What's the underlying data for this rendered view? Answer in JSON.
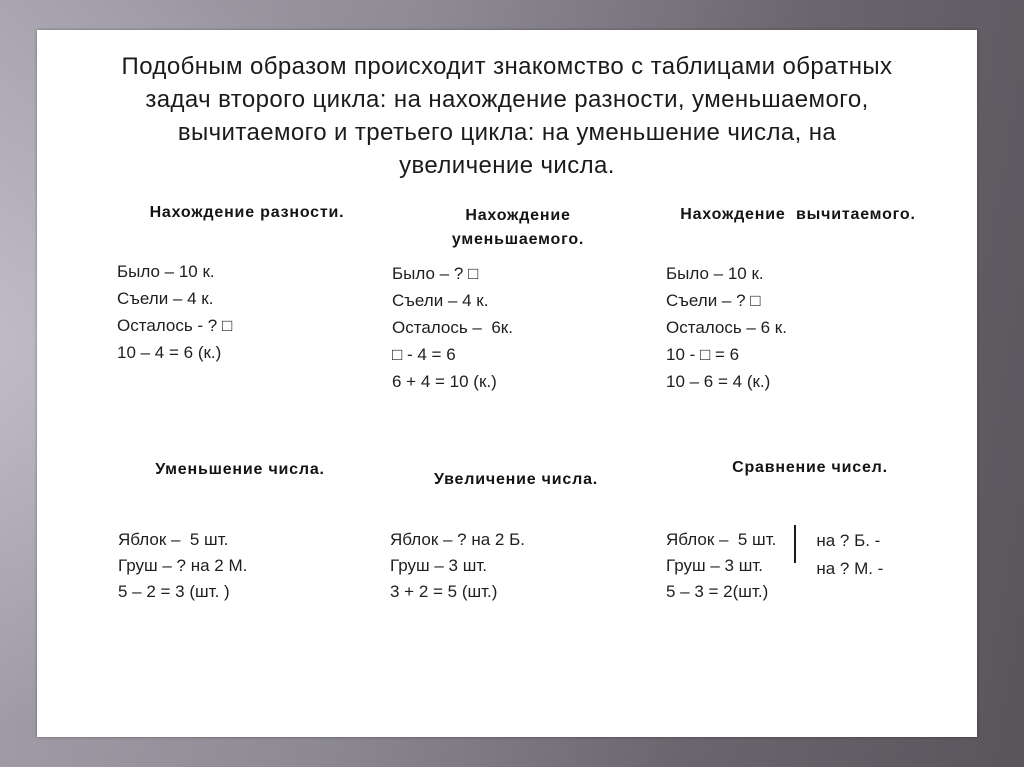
{
  "slide": {
    "title_lines": [
      "Подобным образом происходит знакомство с таблицами обратных",
      "задач второго цикла: на нахождение разности, уменьшаемого,",
      "вычитаемого и третьего цикла: на уменьшение числа, на",
      "увеличение числа."
    ],
    "sections": [
      {
        "header": "Нахождение разности.",
        "lines": [
          "Было – 10 к.",
          "Съели – 4 к.",
          "Осталось - ? □",
          "10 – 4 = 6 (к.)"
        ]
      },
      {
        "header": "Нахождение уменьшаемого.",
        "lines": [
          "Было – ? □",
          "Съели – 4 к.",
          "Осталось –  6к.",
          "□ - 4 = 6",
          "6 + 4 = 10 (к.)"
        ]
      },
      {
        "header": "Нахождение  вычитаемого.",
        "lines": [
          "Было – 10 к.",
          "Съели – ? □",
          "Осталось – 6 к.",
          "10 - □ = 6",
          "10 – 6 = 4 (к.)"
        ]
      },
      {
        "header": "Уменьшение числа.",
        "lines": [
          "Яблок –  5 шт.",
          "Груш – ? на 2 М.",
          "5 – 2 = 3 (шт. )"
        ]
      },
      {
        "header": "Увеличение числа.",
        "lines": [
          "Яблок – ? на 2 Б.",
          "Груш – 3 шт.",
          "3 + 2 = 5 (шт.)"
        ]
      },
      {
        "header": "Сравнение чисел.",
        "lines": [
          "Яблок –  5 шт.",
          "Груш – 3 шт.",
          "5 – 3 = 2(шт.)"
        ],
        "notes": [
          "на ? Б. -",
          "на ? М. -"
        ]
      }
    ],
    "colors": {
      "frame_light": "#a7a3ae",
      "frame_dark": "#59555b",
      "page_background": "#ffffff",
      "text": "#1f1f1f"
    }
  }
}
